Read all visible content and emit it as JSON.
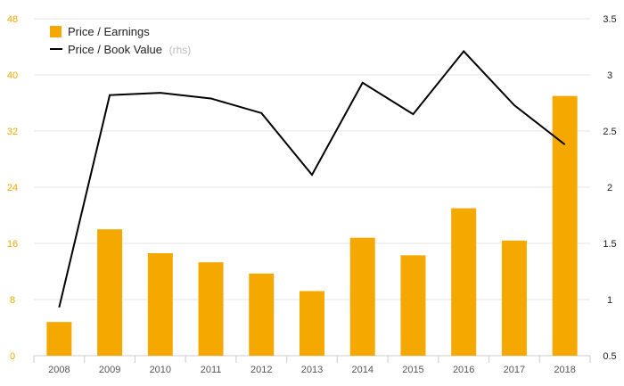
{
  "chart_data": {
    "type": "bar",
    "categories": [
      "2008",
      "2009",
      "2010",
      "2011",
      "2012",
      "2013",
      "2014",
      "2015",
      "2016",
      "2017",
      "2018"
    ],
    "series": [
      {
        "name": "Price / Earnings",
        "type": "bar",
        "axis": "left",
        "color": "#f5a800",
        "values": [
          4.8,
          18.0,
          14.6,
          13.3,
          11.7,
          9.2,
          16.8,
          14.3,
          21.0,
          16.4,
          37.0
        ]
      },
      {
        "name": "Price / Book Value",
        "name_suffix": "(rhs)",
        "type": "line",
        "axis": "right",
        "color": "#000000",
        "values": [
          0.93,
          2.82,
          2.84,
          2.79,
          2.66,
          2.11,
          2.93,
          2.65,
          3.21,
          2.73,
          2.38
        ]
      }
    ],
    "ylim_left": [
      0,
      48
    ],
    "yticks_left": [
      0,
      8,
      16,
      24,
      32,
      40,
      48
    ],
    "ylim_right": [
      0.5,
      3.5
    ],
    "yticks_right": [
      "0.5",
      "1",
      "1.5",
      "2",
      "2.5",
      "3",
      "3.5"
    ],
    "grid": true,
    "legend_position": "top-left"
  }
}
